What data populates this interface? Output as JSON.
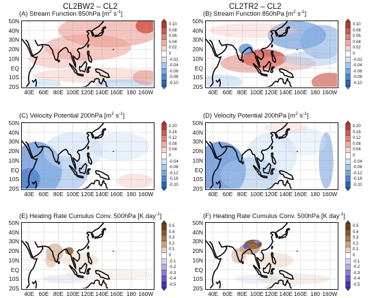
{
  "column_titles": {
    "left": "CL2BW2 – CL2",
    "right": "CL2TR2 – CL2"
  },
  "lat_labels": [
    "50N",
    "40N",
    "30N",
    "20N",
    "10N",
    "EQ",
    "10S",
    "20S"
  ],
  "lon_labels": [
    "40E",
    "60E",
    "80E",
    "100E",
    "120E",
    "140E",
    "160E",
    "180",
    "160W"
  ],
  "panels": [
    {
      "id": "A",
      "title": "(A) Stream Function 850hPa",
      "unit": "m",
      "unit_sup1": "2",
      "unit_mid": " s",
      "unit_sup2": "-1",
      "colorbar": {
        "type": "redblue",
        "ticks": [
          "0.10",
          "0.08",
          "0.06",
          "0.04",
          "0.02",
          "0",
          "-0.02",
          "-0.04",
          "-0.06",
          "-0.08",
          "-0.10"
        ]
      }
    },
    {
      "id": "B",
      "title": "(B) Stream Function 850hPa",
      "unit": "m",
      "unit_sup1": "2",
      "unit_mid": " s",
      "unit_sup2": "-1",
      "colorbar": {
        "type": "redblue",
        "ticks": [
          "0.10",
          "0.08",
          "0.06",
          "0.04",
          "0.02",
          "0",
          "-0.02",
          "-0.04",
          "-0.06",
          "-0.08",
          "-0.10"
        ]
      }
    },
    {
      "id": "C",
      "title": "(C) Velocity Potential 200hPa",
      "unit": "m",
      "unit_sup1": "2",
      "unit_mid": " s",
      "unit_sup2": "-1",
      "colorbar": {
        "type": "redblue",
        "ticks": [
          "0.20",
          "0.16",
          "0.12",
          "0.08",
          "0.04",
          "0",
          "-0.04",
          "-0.08",
          "-0.12",
          "-0.16",
          "-0.20"
        ]
      }
    },
    {
      "id": "D",
      "title": "(D) Velocity Potential 200hPa",
      "unit": "m",
      "unit_sup1": "2",
      "unit_mid": " s",
      "unit_sup2": "-1",
      "colorbar": {
        "type": "redblue",
        "ticks": [
          "0.20",
          "0.16",
          "0.12",
          "0.08",
          "0.04",
          "0",
          "-0.04",
          "-0.08",
          "-0.12",
          "-0.16",
          "-0.20"
        ]
      }
    },
    {
      "id": "E",
      "title": "(E) Heating Rate Cumulus Conv. 500hPa",
      "unit": "K day",
      "unit_sup1": "",
      "unit_mid": "",
      "unit_sup2": "-1",
      "colorbar": {
        "type": "brownpurple",
        "ticks": [
          "0.5",
          "0.4",
          "0.3",
          "0.2",
          "0.1",
          "0",
          "-0.1",
          "-0.2",
          "-0.3",
          "-0.4",
          "-0.5"
        ]
      }
    },
    {
      "id": "F",
      "title": "(F) Heating Rate Cumulus Conv. 500hPa",
      "unit": "K day",
      "unit_sup1": "",
      "unit_mid": "",
      "unit_sup2": "-1",
      "colorbar": {
        "type": "brownpurple",
        "ticks": [
          "0.5",
          "0.4",
          "0.3",
          "0.2",
          "0.1",
          "0",
          "-0.1",
          "-0.2",
          "-0.3",
          "-0.4",
          "-0.5"
        ]
      }
    }
  ]
}
